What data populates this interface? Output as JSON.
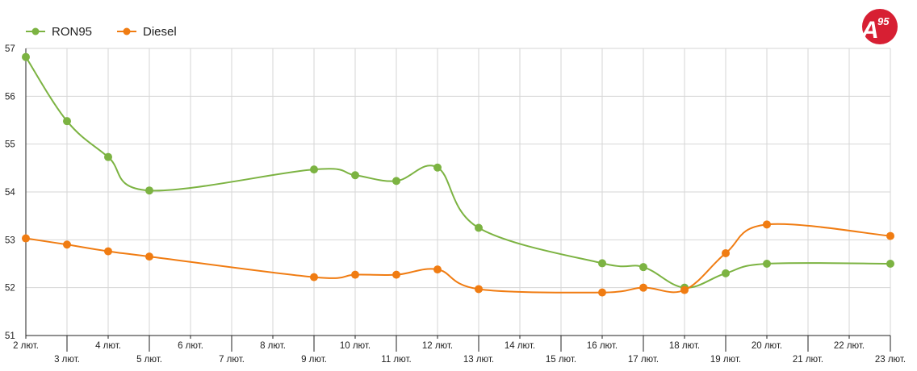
{
  "chart_data": {
    "type": "line",
    "title": "",
    "xlabel": "",
    "ylabel": "",
    "x": [
      "2 лют.",
      "3 лют.",
      "4 лют.",
      "5 лют.",
      "6 лют.",
      "7 лют.",
      "8 лют.",
      "9 лют.",
      "10 лют.",
      "11 лют.",
      "12 лют.",
      "13 лют.",
      "14 лют.",
      "15 лют.",
      "16 лют.",
      "17 лют.",
      "18 лют.",
      "19 лют.",
      "20 лют.",
      "21 лют.",
      "22 лют.",
      "23 лют."
    ],
    "series": [
      {
        "name": "RON95",
        "color": "#7cb342",
        "values": [
          56.82,
          55.48,
          54.73,
          54.03,
          null,
          null,
          null,
          54.47,
          54.35,
          54.23,
          54.51,
          53.25,
          null,
          null,
          52.51,
          52.43,
          52.0,
          52.3,
          52.5,
          null,
          null,
          52.5
        ]
      },
      {
        "name": "Diesel",
        "color": "#f07c12",
        "values": [
          53.03,
          52.9,
          52.76,
          52.65,
          null,
          null,
          null,
          52.22,
          52.27,
          52.27,
          52.38,
          51.97,
          null,
          null,
          51.9,
          52.0,
          51.95,
          52.72,
          53.32,
          null,
          null,
          53.08
        ]
      }
    ],
    "ylim": [
      51,
      57
    ],
    "yticks": [
      51,
      52,
      53,
      54,
      55,
      56,
      57
    ],
    "grid": true,
    "legend": "top-left"
  },
  "logo": {
    "letter": "A",
    "number": "95",
    "color": "#d71f33"
  }
}
